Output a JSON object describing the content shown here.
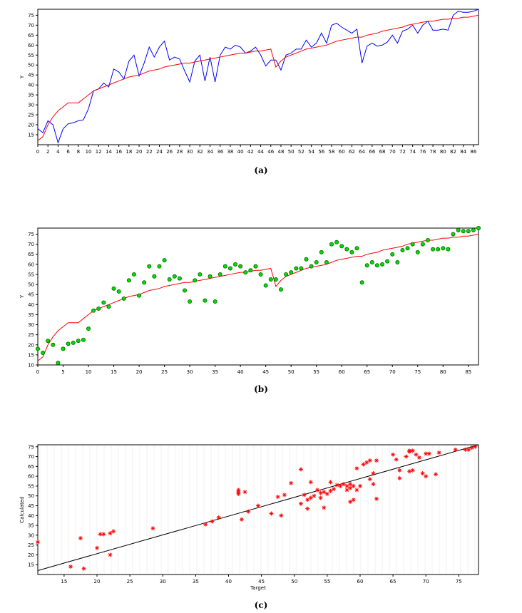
{
  "captions": [
    "(a)",
    "(b)",
    "(c)"
  ],
  "chart_data": [
    {
      "type": "line",
      "caption": "(a)",
      "ylabel": "Y",
      "xlim": [
        0,
        87
      ],
      "ylim": [
        10,
        78
      ],
      "xticks": [
        0,
        2,
        4,
        6,
        8,
        10,
        12,
        14,
        16,
        18,
        20,
        22,
        24,
        26,
        28,
        30,
        32,
        34,
        36,
        38,
        40,
        42,
        44,
        46,
        48,
        50,
        52,
        54,
        56,
        58,
        60,
        62,
        64,
        66,
        68,
        70,
        72,
        74,
        76,
        78,
        80,
        82,
        84,
        86
      ],
      "yticks": [
        15,
        20,
        25,
        30,
        35,
        40,
        45,
        50,
        55,
        60,
        65,
        70,
        75
      ],
      "series": [
        {
          "color": "#0000ff",
          "values": [
            18,
            16,
            22,
            20,
            11,
            18,
            20.5,
            21,
            22,
            22.5,
            28,
            37,
            38,
            41,
            39,
            48,
            46.5,
            43,
            52,
            55,
            44.5,
            51,
            59,
            54,
            59,
            62,
            52.5,
            54,
            53,
            47,
            41.5,
            52,
            55,
            42,
            54,
            41.5,
            55,
            59,
            58,
            60,
            59,
            56,
            57,
            59,
            55,
            49.5,
            52.5,
            52.5,
            47.5,
            55,
            56,
            58,
            58,
            62.5,
            59,
            61,
            66,
            61,
            70,
            71,
            69,
            67.5,
            66,
            68,
            51,
            59.5,
            61,
            59.5,
            60,
            61.5,
            65,
            61,
            67,
            68,
            70,
            66,
            70,
            72,
            67.5,
            67.5,
            68,
            67.5,
            75,
            77,
            76.5,
            76.5,
            77,
            78
          ]
        },
        {
          "color": "#ff0000",
          "values": [
            12,
            14,
            20,
            24,
            27,
            29,
            31,
            31,
            31,
            33,
            35,
            37,
            38,
            39,
            40,
            41,
            42,
            43,
            44,
            44.5,
            45,
            46,
            47,
            47.5,
            48,
            49,
            49.5,
            50,
            50.5,
            51,
            51,
            51.5,
            52,
            52.5,
            53,
            53.5,
            54,
            54.5,
            55,
            55.5,
            56,
            56,
            56.5,
            57,
            57,
            57.5,
            58,
            49,
            52,
            54,
            55,
            56,
            57,
            58,
            58.5,
            59,
            59.5,
            60,
            61,
            62,
            62.5,
            63,
            63.5,
            64,
            64,
            65,
            65.5,
            66,
            67,
            67.5,
            68,
            68.5,
            69,
            70,
            70.5,
            71,
            71.5,
            72,
            72,
            72.5,
            73,
            73,
            73.5,
            73.5,
            74,
            74,
            74.5,
            75
          ]
        }
      ]
    },
    {
      "type": "scatter",
      "caption": "(b)",
      "ylabel": "Y",
      "xlim": [
        0,
        87
      ],
      "ylim": [
        10,
        78
      ],
      "xticks": [
        0,
        5,
        10,
        15,
        20,
        25,
        30,
        35,
        40,
        45,
        50,
        55,
        60,
        65,
        70,
        75,
        80,
        85
      ],
      "yticks": [
        10,
        15,
        20,
        25,
        30,
        35,
        40,
        45,
        50,
        55,
        60,
        65,
        70,
        75
      ],
      "series": [
        {
          "color": "#00dd00",
          "values": [
            18,
            16,
            22,
            20,
            11,
            18,
            20.5,
            21,
            22,
            22.5,
            28,
            37,
            38,
            41,
            39,
            48,
            46.5,
            43,
            52,
            55,
            44.5,
            51,
            59,
            54,
            59,
            62,
            52.5,
            54,
            53,
            47,
            41.5,
            52,
            55,
            42,
            54,
            41.5,
            55,
            59,
            58,
            60,
            59,
            56,
            57,
            59,
            55,
            49.5,
            52.5,
            52.5,
            47.5,
            55,
            56,
            58,
            58,
            62.5,
            59,
            61,
            66,
            61,
            70,
            71,
            69,
            67.5,
            66,
            68,
            51,
            59.5,
            61,
            59.5,
            60,
            61.5,
            65,
            61,
            67,
            68,
            70,
            66,
            70,
            72,
            67.5,
            67.5,
            68,
            67.5,
            75,
            77,
            76.5,
            76.5,
            77,
            78
          ]
        },
        {
          "color": "#ff0000",
          "values": [
            12,
            14,
            20,
            24,
            27,
            29,
            31,
            31,
            31,
            33,
            35,
            37,
            38,
            39,
            40,
            41,
            42,
            43,
            44,
            44.5,
            45,
            46,
            47,
            47.5,
            48,
            49,
            49.5,
            50,
            50.5,
            51,
            51,
            51.5,
            52,
            52.5,
            53,
            53.5,
            54,
            54.5,
            55,
            55.5,
            56,
            56,
            56.5,
            57,
            57,
            57.5,
            58,
            49,
            52,
            54,
            55,
            56,
            57,
            58,
            58.5,
            59,
            59.5,
            60,
            61,
            62,
            62.5,
            63,
            63.5,
            64,
            64,
            65,
            65.5,
            66,
            67,
            67.5,
            68,
            68.5,
            69,
            70,
            70.5,
            71,
            71.5,
            72,
            72,
            72.5,
            73,
            73,
            73.5,
            73.5,
            74,
            74,
            74.5,
            75
          ]
        }
      ]
    },
    {
      "type": "scatter",
      "caption": "(c)",
      "xlabel": "Target",
      "ylabel": "Calculated",
      "xlim": [
        11,
        78
      ],
      "ylim": [
        10,
        76
      ],
      "xticks": [
        15,
        20,
        25,
        30,
        35,
        40,
        45,
        50,
        55,
        60,
        65,
        70,
        75
      ],
      "yticks": [
        15,
        20,
        25,
        30,
        35,
        40,
        45,
        50,
        55,
        60,
        65,
        70,
        75
      ],
      "fit_line": [
        [
          11,
          12
        ],
        [
          78,
          76
        ]
      ],
      "series": [
        {
          "color": "#ff0000",
          "points": [
            [
              11,
              26.5
            ],
            [
              16,
              14
            ],
            [
              17.5,
              28.5
            ],
            [
              18,
              13
            ],
            [
              20,
              23.5
            ],
            [
              20.5,
              30.5
            ],
            [
              21,
              30.5
            ],
            [
              22,
              31
            ],
            [
              22,
              20
            ],
            [
              22.5,
              32
            ],
            [
              28.5,
              33.5
            ],
            [
              36.5,
              35.5
            ],
            [
              37.5,
              37
            ],
            [
              38.5,
              39
            ],
            [
              41.5,
              53
            ],
            [
              41.5,
              51
            ],
            [
              41.5,
              52
            ],
            [
              42,
              38
            ],
            [
              42.5,
              52
            ],
            [
              43,
              42
            ],
            [
              44.5,
              45
            ],
            [
              46.5,
              41
            ],
            [
              47.5,
              49.5
            ],
            [
              48,
              40
            ],
            [
              48.5,
              50.5
            ],
            [
              49.5,
              56.5
            ],
            [
              51,
              63.5
            ],
            [
              51,
              46
            ],
            [
              51.5,
              50.5
            ],
            [
              52,
              43.5
            ],
            [
              52,
              48
            ],
            [
              52.5,
              57
            ],
            [
              52.5,
              49
            ],
            [
              53,
              50
            ],
            [
              53.5,
              53
            ],
            [
              54,
              51.5
            ],
            [
              54,
              49
            ],
            [
              54.5,
              44
            ],
            [
              54.5,
              52
            ],
            [
              55,
              51
            ],
            [
              55.5,
              52.5
            ],
            [
              55.5,
              57
            ],
            [
              56,
              53.5
            ],
            [
              56.5,
              55.5
            ],
            [
              57,
              55
            ],
            [
              57.5,
              56
            ],
            [
              58,
              55
            ],
            [
              58,
              53
            ],
            [
              58.5,
              54
            ],
            [
              58.5,
              56
            ],
            [
              58.5,
              47
            ],
            [
              59,
              55
            ],
            [
              59,
              48
            ],
            [
              59.5,
              53
            ],
            [
              59.5,
              64
            ],
            [
              60,
              55
            ],
            [
              60.5,
              66
            ],
            [
              61,
              67
            ],
            [
              61.5,
              58.5
            ],
            [
              61.5,
              68
            ],
            [
              62,
              56
            ],
            [
              62,
              61.5
            ],
            [
              62.5,
              48.5
            ],
            [
              62.5,
              68
            ],
            [
              65,
              71
            ],
            [
              65.5,
              68.5
            ],
            [
              66,
              63
            ],
            [
              66,
              59
            ],
            [
              67,
              70
            ],
            [
              67.5,
              72.5
            ],
            [
              67.5,
              73
            ],
            [
              67.5,
              62.5
            ],
            [
              68,
              73
            ],
            [
              68,
              63
            ],
            [
              68.5,
              71
            ],
            [
              69,
              69.5
            ],
            [
              69.5,
              61.5
            ],
            [
              70,
              71.5
            ],
            [
              70,
              60
            ],
            [
              70.5,
              71.5
            ],
            [
              71.5,
              61
            ],
            [
              72,
              72
            ],
            [
              74.5,
              73.5
            ],
            [
              76,
              73.5
            ],
            [
              76.5,
              73.5
            ],
            [
              77,
              74.5
            ],
            [
              77.5,
              75
            ]
          ]
        }
      ]
    }
  ]
}
